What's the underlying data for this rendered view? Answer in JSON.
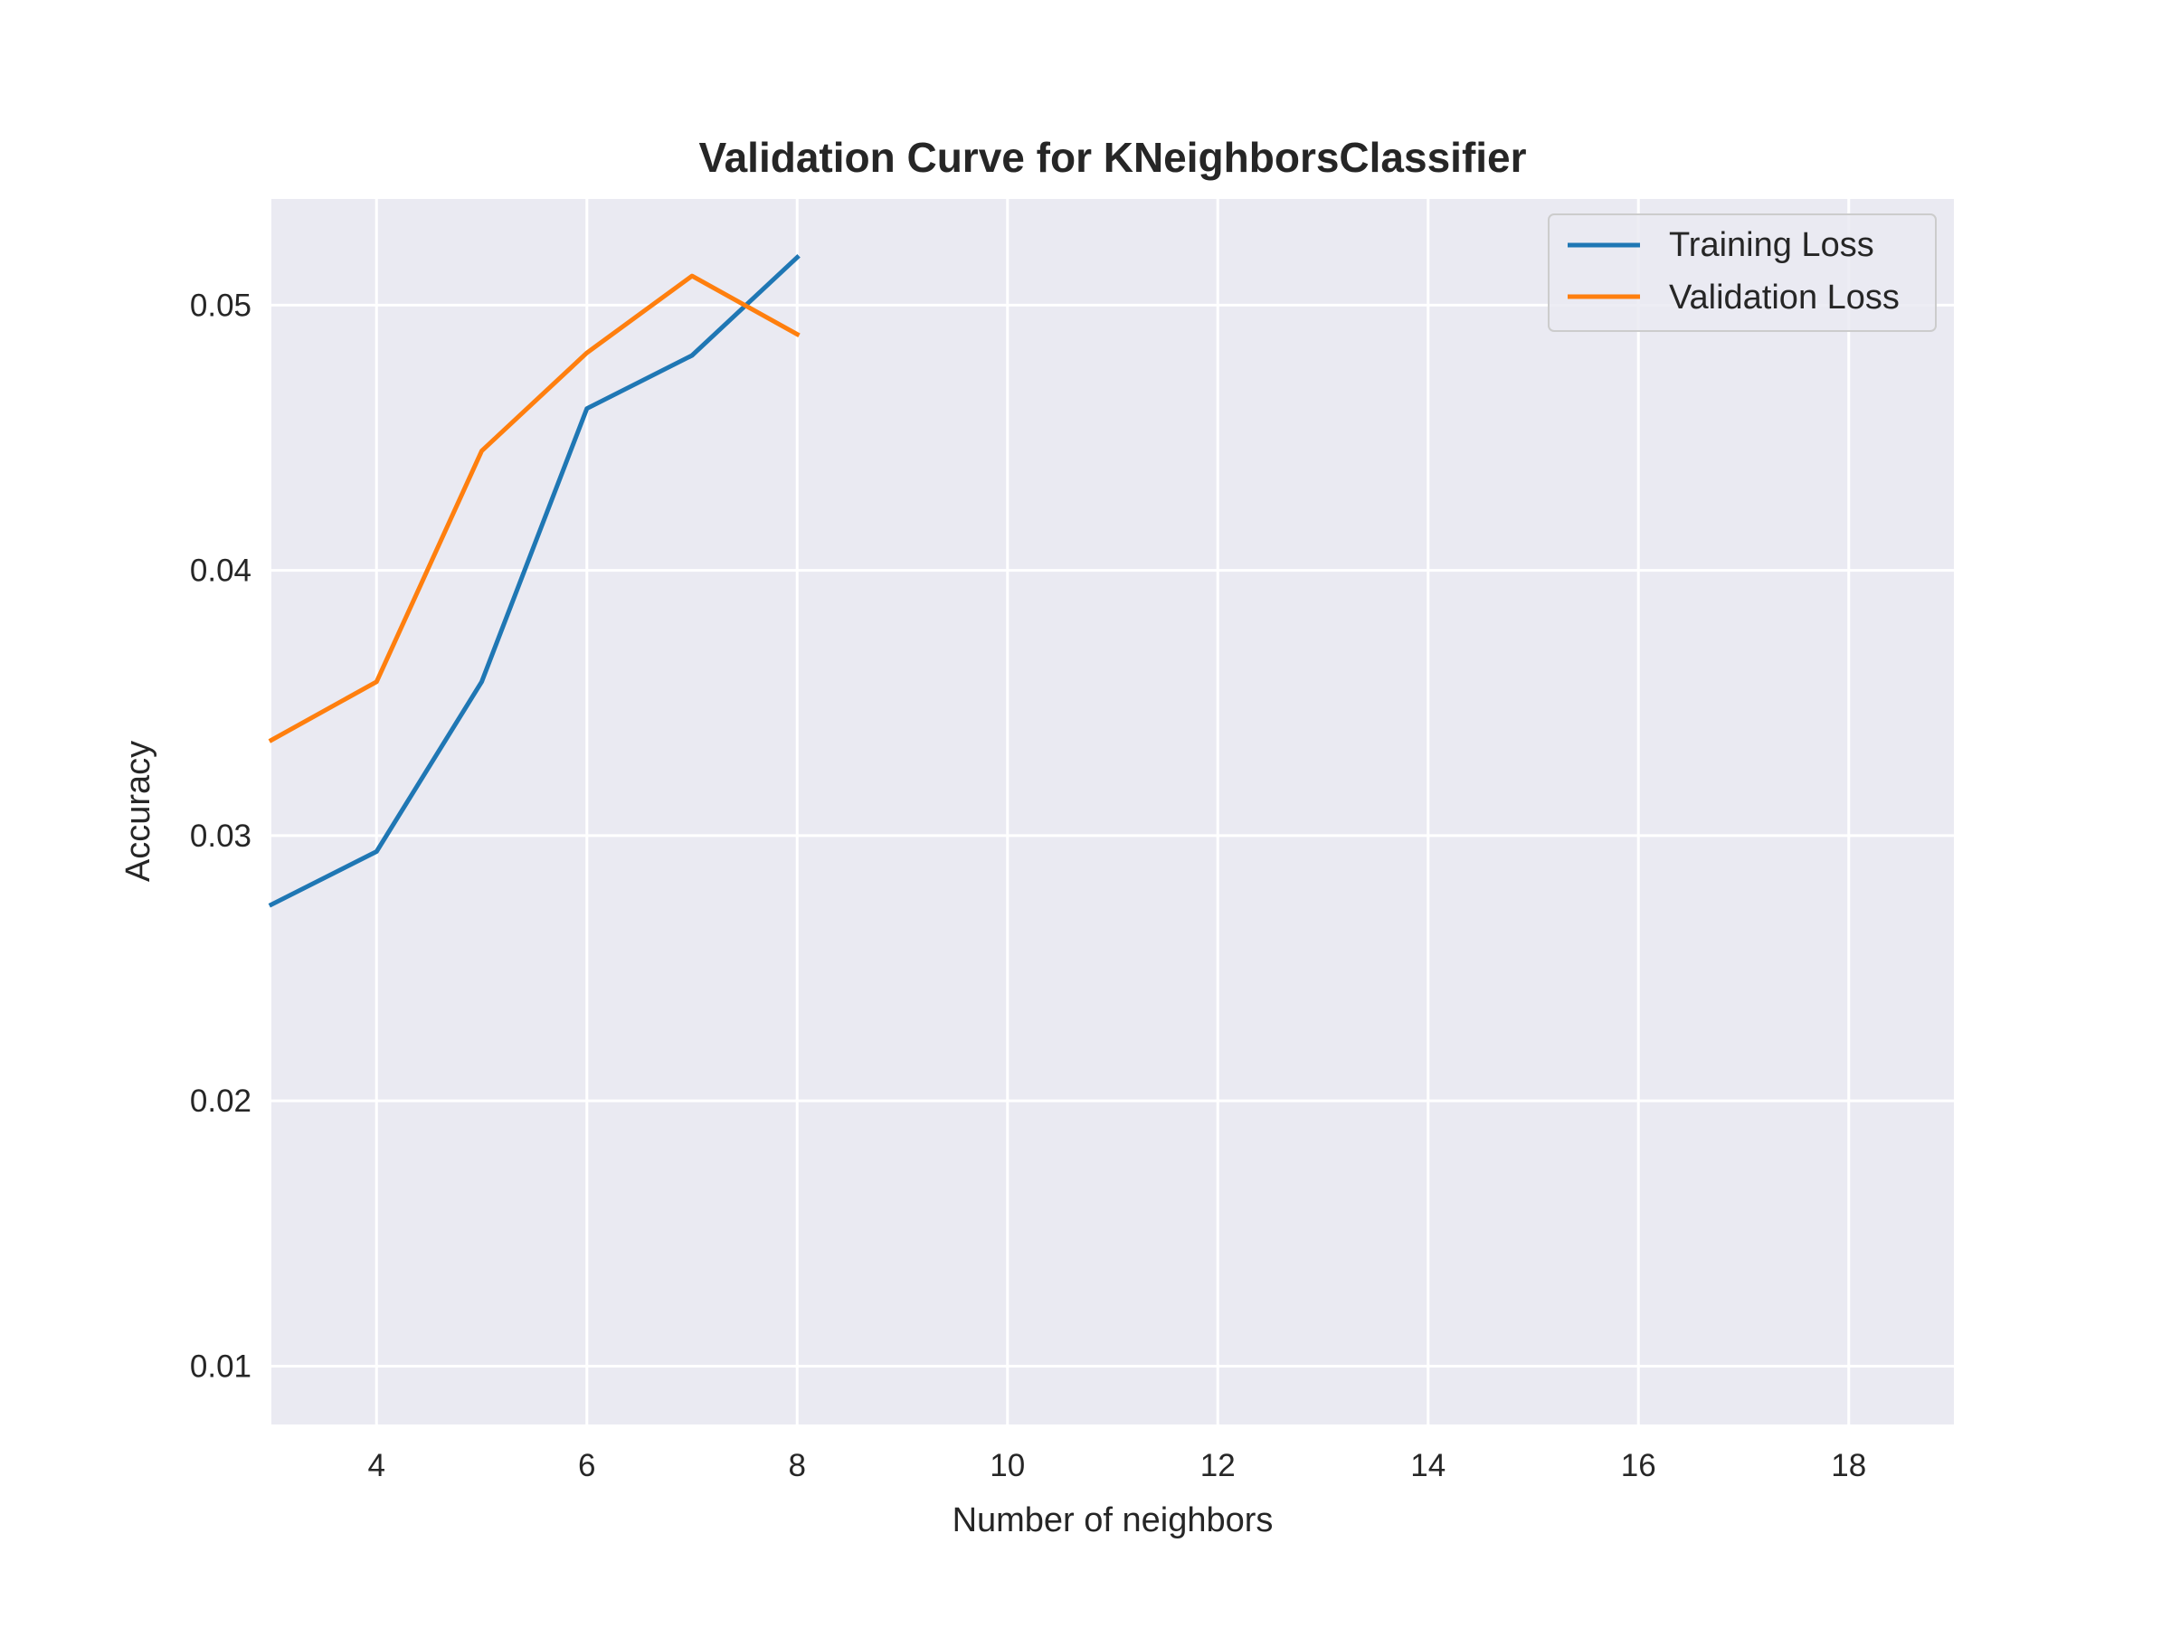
{
  "chart_data": {
    "type": "line",
    "title": "Validation Curve for KNeighborsClassifier",
    "xlabel": "Number of neighbors",
    "ylabel": "Accuracy",
    "xlim": [
      3,
      19
    ],
    "ylim": [
      0.0078,
      0.054
    ],
    "xticks": [
      4,
      6,
      8,
      10,
      12,
      14,
      16,
      18
    ],
    "yticks": [
      0.01,
      0.02,
      0.03,
      0.04,
      0.05
    ],
    "xtick_labels": [
      "4",
      "6",
      "8",
      "10",
      "12",
      "14",
      "16",
      "18"
    ],
    "ytick_labels": [
      "0.01",
      "0.02",
      "0.03",
      "0.04",
      "0.05"
    ],
    "grid": true,
    "legend_position": "top-right",
    "background": "#eaeaf2",
    "series": [
      {
        "name": "Training Loss",
        "color": "#1f77b4",
        "x": [
          3,
          4,
          5,
          6,
          7,
          8
        ],
        "y": [
          0.0274,
          0.0294,
          0.0358,
          0.0461,
          0.0481,
          0.0518
        ]
      },
      {
        "name": "Validation Loss",
        "color": "#ff7f0e",
        "x": [
          3,
          4,
          5,
          6,
          7,
          8
        ],
        "y": [
          0.0336,
          0.0358,
          0.0445,
          0.0482,
          0.0511,
          0.0489
        ]
      }
    ]
  }
}
